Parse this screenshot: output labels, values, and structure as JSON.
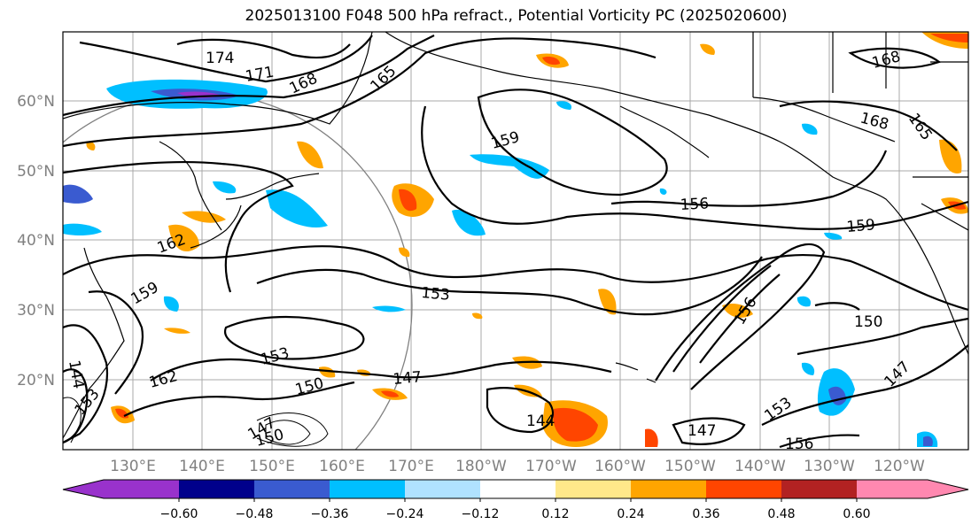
{
  "title": "2025013100 F048 500 hPa refract., Potential Vorticity PC (2025020600)",
  "lat_labels": [
    "60°N",
    "50°N",
    "40°N",
    "30°N",
    "20°N"
  ],
  "lon_labels": [
    "130°E",
    "140°E",
    "150°E",
    "160°E",
    "170°E",
    "180°W",
    "170°W",
    "160°W",
    "150°W",
    "140°W",
    "130°W",
    "120°W"
  ],
  "contour_labels": [
    "174",
    "171",
    "168",
    "165",
    "159",
    "168",
    "165",
    "168",
    "156",
    "159",
    "162",
    "159",
    "153",
    "153",
    "156",
    "150",
    "162",
    "150",
    "147",
    "144",
    "147",
    "153",
    "156",
    "147",
    "144",
    "147",
    "150",
    "153"
  ],
  "colorbar": {
    "ticks": [
      "−0.60",
      "−0.48",
      "−0.36",
      "−0.24",
      "−0.12",
      "0.12",
      "0.24",
      "0.36",
      "0.48",
      "0.60"
    ],
    "colors": [
      "#9932cc",
      "#00008b",
      "#3a5bd0",
      "#00bfff",
      "#b0e2ff",
      "#ffffff",
      "#ffe88a",
      "#ffa500",
      "#ff4500",
      "#b22222",
      "#ff88b0",
      "#ff88b0"
    ]
  }
}
